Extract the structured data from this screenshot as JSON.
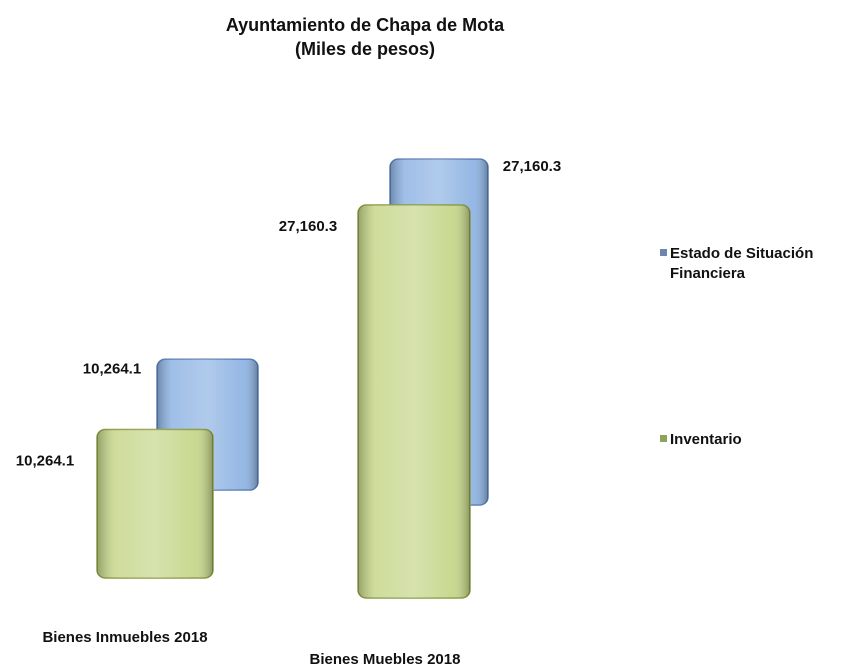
{
  "chart_data": {
    "type": "bar",
    "title": "Ayuntamiento de Chapa de Mota",
    "subtitle": "(Miles de pesos)",
    "categories": [
      "Bienes Inmuebles 2018",
      "Bienes Muebles 2018"
    ],
    "series": [
      {
        "name": "Estado de Situación Financiera",
        "color": "#8fb4e3",
        "values": [
          10264.1,
          27160.3
        ],
        "value_labels": [
          "10,264.1",
          "27,160.3"
        ]
      },
      {
        "name": "Inventario",
        "color": "#c6d68a",
        "values": [
          10264.1,
          27160.3
        ],
        "value_labels": [
          "10,264.1",
          "27,160.3"
        ]
      }
    ]
  }
}
